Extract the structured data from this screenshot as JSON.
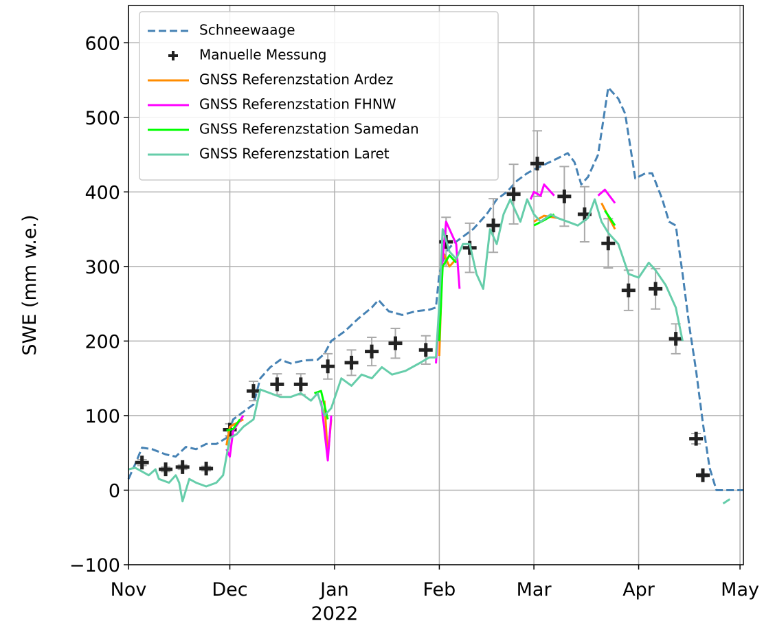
{
  "chart_data": {
    "type": "line",
    "ylabel": "SWE (mm w.e.)",
    "xlim": [
      "2021-11-01",
      "2022-05-02"
    ],
    "xticks": [
      {
        "value": "2021-11-01",
        "label": "Nov"
      },
      {
        "value": "2021-12-01",
        "label": "Dec"
      },
      {
        "value": "2022-01-01",
        "label": "Jan"
      },
      {
        "value": "2022-02-01",
        "label": "Feb"
      },
      {
        "value": "2022-03-01",
        "label": "Mar"
      },
      {
        "value": "2022-04-01",
        "label": "Apr"
      },
      {
        "value": "2022-05-01",
        "label": "May"
      }
    ],
    "x_year": "2022",
    "ylim": [
      -100,
      650
    ],
    "yticks": [
      {
        "value": -100,
        "label": "−100"
      },
      0,
      100,
      200,
      300,
      400,
      500,
      600
    ],
    "grid": true,
    "legend": "upper left",
    "series": [
      {
        "name": "Schneewaage",
        "color": "#4682b4",
        "style": "dashed",
        "x": [
          "2021-11-01",
          "2021-11-03",
          "2021-11-05",
          "2021-11-08",
          "2021-11-12",
          "2021-11-15",
          "2021-11-18",
          "2021-11-21",
          "2021-11-24",
          "2021-11-27",
          "2021-11-30",
          "2021-12-02",
          "2021-12-05",
          "2021-12-08",
          "2021-12-10",
          "2021-12-13",
          "2021-12-16",
          "2021-12-19",
          "2021-12-23",
          "2021-12-27",
          "2021-12-29",
          "2021-12-31",
          "2022-01-04",
          "2022-01-08",
          "2022-01-12",
          "2022-01-14",
          "2022-01-17",
          "2022-01-21",
          "2022-01-25",
          "2022-01-29",
          "2022-01-31",
          "2022-02-01",
          "2022-02-03",
          "2022-02-05",
          "2022-02-08",
          "2022-02-11",
          "2022-02-15",
          "2022-02-18",
          "2022-02-21",
          "2022-02-24",
          "2022-02-27",
          "2022-03-01",
          "2022-03-08",
          "2022-03-11",
          "2022-03-13",
          "2022-03-15",
          "2022-03-17",
          "2022-03-20",
          "2022-03-23",
          "2022-03-26",
          "2022-03-28",
          "2022-03-31",
          "2022-04-03",
          "2022-04-05",
          "2022-04-08",
          "2022-04-10",
          "2022-04-12",
          "2022-04-14",
          "2022-04-16",
          "2022-04-18",
          "2022-04-20",
          "2022-04-22",
          "2022-04-24",
          "2022-05-02"
        ],
        "values": [
          15,
          35,
          57,
          55,
          48,
          45,
          58,
          55,
          62,
          62,
          70,
          95,
          105,
          115,
          150,
          165,
          175,
          170,
          174,
          175,
          183,
          200,
          213,
          230,
          245,
          255,
          240,
          235,
          240,
          242,
          245,
          290,
          320,
          330,
          340,
          350,
          370,
          390,
          400,
          415,
          425,
          430,
          445,
          452,
          440,
          410,
          420,
          450,
          540,
          525,
          505,
          418,
          425,
          425,
          390,
          360,
          355,
          290,
          220,
          160,
          90,
          30,
          0,
          0
        ]
      },
      {
        "name": "Manuelle Messung",
        "color": "#222222",
        "marker": "plus",
        "error_color": "#aaaaaa",
        "x": [
          "2021-11-05",
          "2021-11-12",
          "2021-11-17",
          "2021-11-24",
          "2021-12-01",
          "2021-12-08",
          "2021-12-15",
          "2021-12-22",
          "2021-12-30",
          "2022-01-06",
          "2022-01-12",
          "2022-01-19",
          "2022-01-28",
          "2022-02-03",
          "2022-02-10",
          "2022-02-17",
          "2022-02-23",
          "2022-03-02",
          "2022-03-10",
          "2022-03-16",
          "2022-03-23",
          "2022-03-29",
          "2022-04-06",
          "2022-04-12",
          "2022-04-18",
          "2022-04-20"
        ],
        "values": [
          37,
          28,
          31,
          29,
          81,
          133,
          142,
          142,
          166,
          171,
          186,
          197,
          188,
          333,
          325,
          355,
          397,
          438,
          394,
          370,
          331,
          268,
          270,
          203,
          69,
          20
        ],
        "errors": [
          4,
          3,
          3,
          3,
          8,
          13,
          14,
          14,
          17,
          17,
          19,
          20,
          19,
          33,
          33,
          36,
          40,
          44,
          40,
          37,
          33,
          27,
          27,
          20,
          7,
          2
        ]
      },
      {
        "name": "GNSS Referenzstation Ardez",
        "color": "#ff8c00",
        "x": [
          "2021-11-30",
          "2021-12-01",
          "2021-12-03",
          "2021-12-05",
          "2021-12-15",
          "2021-12-29",
          "2021-12-30",
          "2021-12-31",
          "2022-01-15",
          "2022-02-01",
          "2022-02-02",
          "2022-02-04",
          "2022-02-06",
          "2022-02-15",
          "2022-03-01",
          "2022-03-04",
          "2022-03-08",
          "2022-03-15",
          "2022-03-21",
          "2022-03-25"
        ],
        "values": [
          60,
          85,
          90,
          95,
          null,
          120,
          45,
          95,
          null,
          180,
          320,
          300,
          310,
          null,
          360,
          368,
          365,
          null,
          385,
          350
        ]
      },
      {
        "name": "GNSS Referenzstation FHNW",
        "color": "#ff00ff",
        "x": [
          "2021-11-30",
          "2021-12-01",
          "2021-12-02",
          "2021-12-05",
          "2021-12-15",
          "2021-12-28",
          "2021-12-30",
          "2021-12-31",
          "2022-01-15",
          "2022-01-31",
          "2022-02-02",
          "2022-02-03",
          "2022-02-06",
          "2022-02-07",
          "2022-02-15",
          "2022-02-28",
          "2022-03-01",
          "2022-03-03",
          "2022-03-04",
          "2022-03-07",
          "2022-03-14",
          "2022-03-20",
          "2022-03-22",
          "2022-03-25"
        ],
        "values": [
          55,
          45,
          80,
          100,
          null,
          120,
          40,
          100,
          null,
          170,
          310,
          360,
          330,
          270,
          null,
          390,
          400,
          395,
          410,
          395,
          null,
          395,
          403,
          385
        ]
      },
      {
        "name": "GNSS Referenzstation Samedan",
        "color": "#00ff00",
        "x": [
          "2021-11-30",
          "2021-12-02",
          "2021-12-04",
          "2021-12-15",
          "2021-12-26",
          "2021-12-28",
          "2021-12-30",
          "2022-01-15",
          "2022-02-01",
          "2022-02-02",
          "2022-02-04",
          "2022-02-06",
          "2022-02-15",
          "2022-03-01",
          "2022-03-04",
          "2022-03-07",
          "2022-03-15",
          "2022-03-22",
          "2022-03-25"
        ],
        "values": [
          80,
          82,
          95,
          null,
          130,
          133,
          95,
          null,
          200,
          300,
          315,
          305,
          null,
          355,
          362,
          370,
          null,
          375,
          355
        ]
      },
      {
        "name": "GNSS Referenzstation Laret",
        "color": "#66cdaa",
        "x": [
          "2021-11-01",
          "2021-11-03",
          "2021-11-05",
          "2021-11-07",
          "2021-11-09",
          "2021-11-10",
          "2021-11-13",
          "2021-11-15",
          "2021-11-16",
          "2021-11-17",
          "2021-11-19",
          "2021-11-21",
          "2021-11-24",
          "2021-11-27",
          "2021-11-29",
          "2021-12-01",
          "2021-12-03",
          "2021-12-05",
          "2021-12-08",
          "2021-12-10",
          "2021-12-13",
          "2021-12-16",
          "2021-12-19",
          "2021-12-22",
          "2021-12-25",
          "2021-12-27",
          "2021-12-29",
          "2021-12-31",
          "2022-01-03",
          "2022-01-06",
          "2022-01-09",
          "2022-01-12",
          "2022-01-15",
          "2022-01-18",
          "2022-01-22",
          "2022-01-26",
          "2022-01-29",
          "2022-01-31",
          "2022-02-01",
          "2022-02-02",
          "2022-02-04",
          "2022-02-06",
          "2022-02-08",
          "2022-02-10",
          "2022-02-12",
          "2022-02-14",
          "2022-02-16",
          "2022-02-18",
          "2022-02-20",
          "2022-02-22",
          "2022-02-25",
          "2022-02-27",
          "2022-03-01",
          "2022-03-03",
          "2022-03-06",
          "2022-03-08",
          "2022-03-11",
          "2022-03-14",
          "2022-03-17",
          "2022-03-19",
          "2022-03-21",
          "2022-03-23",
          "2022-03-26",
          "2022-03-29",
          "2022-04-01",
          "2022-04-04",
          "2022-04-06",
          "2022-04-09",
          "2022-04-12",
          "2022-04-14",
          "2022-04-20",
          "2022-04-26",
          "2022-04-28"
        ],
        "values": [
          28,
          30,
          25,
          20,
          28,
          15,
          10,
          20,
          10,
          -15,
          15,
          10,
          5,
          10,
          20,
          70,
          75,
          85,
          95,
          135,
          130,
          125,
          125,
          130,
          120,
          130,
          100,
          110,
          150,
          140,
          155,
          150,
          165,
          155,
          160,
          170,
          178,
          178,
          250,
          350,
          320,
          310,
          330,
          330,
          290,
          270,
          350,
          330,
          370,
          390,
          360,
          390,
          370,
          360,
          370,
          365,
          360,
          355,
          365,
          390,
          360,
          345,
          330,
          290,
          285,
          305,
          295,
          275,
          245,
          200,
          null,
          -18,
          -12
        ]
      }
    ]
  }
}
